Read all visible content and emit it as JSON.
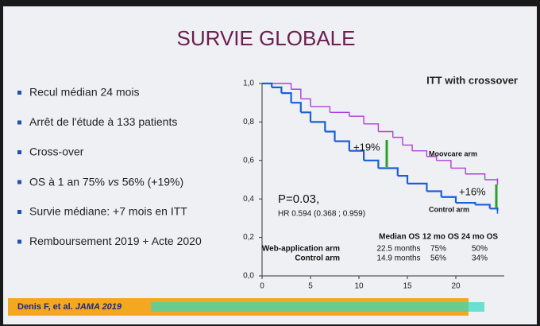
{
  "slide": {
    "title": "SURVIE GLOBALE",
    "bullets": [
      "Recul médian 24 mois",
      "Arrêt de l'étude à 133 patients",
      "Cross-over",
      [
        "OS à 1 an 75% ",
        "vs",
        " 56% (+19%)"
      ],
      "Survie médiane: +7 mois en ITT",
      "Remboursement 2019 + Acte 2020"
    ],
    "reference": [
      "Denis F, et al. ",
      "JAMA 2019"
    ]
  },
  "chart_data": {
    "type": "step",
    "title": "ITT with crossover",
    "xlim": [
      0,
      25
    ],
    "xticks": [
      0,
      5,
      10,
      15,
      20
    ],
    "ylim": [
      0,
      1
    ],
    "yticks": [
      {
        "value": 0,
        "label": "0,0"
      },
      {
        "value": 0.2,
        "label": "0,2"
      },
      {
        "value": 0.4,
        "label": "0,4"
      },
      {
        "value": 0.6,
        "label": "0,6"
      },
      {
        "value": 0.8,
        "label": "0,8"
      },
      {
        "value": 1,
        "label": "1,0"
      }
    ],
    "series": [
      {
        "name": "Moovcare arm",
        "color": "#b040d8",
        "x": [
          0,
          3,
          4,
          5,
          7,
          9,
          10.5,
          12,
          13.5,
          14.5,
          15.5,
          17,
          18,
          19.5,
          21,
          23,
          24.3
        ],
        "values": [
          1,
          0.97,
          0.92,
          0.88,
          0.85,
          0.83,
          0.79,
          0.75,
          0.72,
          0.68,
          0.65,
          0.62,
          0.6,
          0.56,
          0.53,
          0.5,
          0.49
        ]
      },
      {
        "name": "Control arm",
        "color": "#1a5fd8",
        "x": [
          0,
          1,
          2,
          3,
          4,
          5,
          6.5,
          7.5,
          9,
          10.5,
          12,
          14,
          15,
          17,
          18.5,
          20,
          22,
          23.5,
          24.3
        ],
        "values": [
          1,
          0.98,
          0.95,
          0.9,
          0.85,
          0.8,
          0.75,
          0.7,
          0.65,
          0.6,
          0.56,
          0.52,
          0.48,
          0.44,
          0.41,
          0.38,
          0.37,
          0.35,
          0.34
        ]
      }
    ],
    "annotations": {
      "diff12": "+19%",
      "diff24": "+16%",
      "p": "P=0.03,",
      "hr": "HR 0.594 (0.368 ; 0.959)"
    },
    "table": {
      "header": [
        "Median OS",
        "12 mo OS",
        "24 mo OS"
      ],
      "rows": [
        [
          "Web-application arm",
          "22.5 months",
          "75%",
          "50%"
        ],
        [
          "Control arm",
          "14.9 months",
          "56%",
          "34%"
        ]
      ]
    }
  }
}
